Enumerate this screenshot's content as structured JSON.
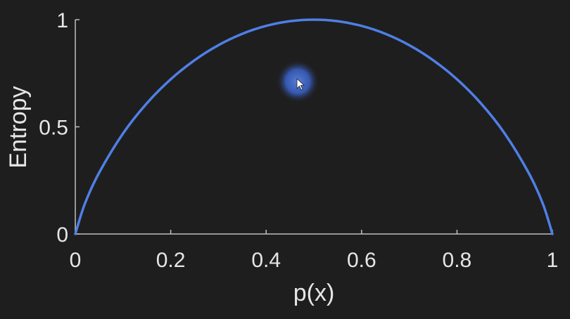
{
  "chart_data": {
    "type": "line",
    "xlabel": "p(x)",
    "ylabel": "Entropy",
    "xlim": [
      0,
      1
    ],
    "ylim": [
      0,
      1
    ],
    "x_ticks": [
      "0",
      "0.2",
      "0.4",
      "0.6",
      "0.8",
      "1"
    ],
    "y_ticks": [
      "0",
      "0.5",
      "1"
    ],
    "grid": false,
    "series": [
      {
        "color": "#4f7fe6",
        "x": [
          0,
          0.02,
          0.05,
          0.1,
          0.15,
          0.2,
          0.25,
          0.3,
          0.35,
          0.4,
          0.45,
          0.5,
          0.55,
          0.6,
          0.65,
          0.7,
          0.75,
          0.8,
          0.85,
          0.9,
          0.95,
          0.98,
          1
        ],
        "y": [
          0,
          0.141,
          0.286,
          0.469,
          0.61,
          0.722,
          0.811,
          0.881,
          0.934,
          0.971,
          0.993,
          1,
          0.993,
          0.971,
          0.934,
          0.881,
          0.811,
          0.722,
          0.61,
          0.469,
          0.286,
          0.141,
          0
        ]
      }
    ]
  },
  "colors": {
    "background": "#1e1e1e",
    "axis": "#bfbfbf",
    "text": "#e6e6e6",
    "curve": "#4f7fe6",
    "cursor_highlight": "#3a62c9"
  },
  "cursor": {
    "icon": "pointer-arrow-icon"
  }
}
